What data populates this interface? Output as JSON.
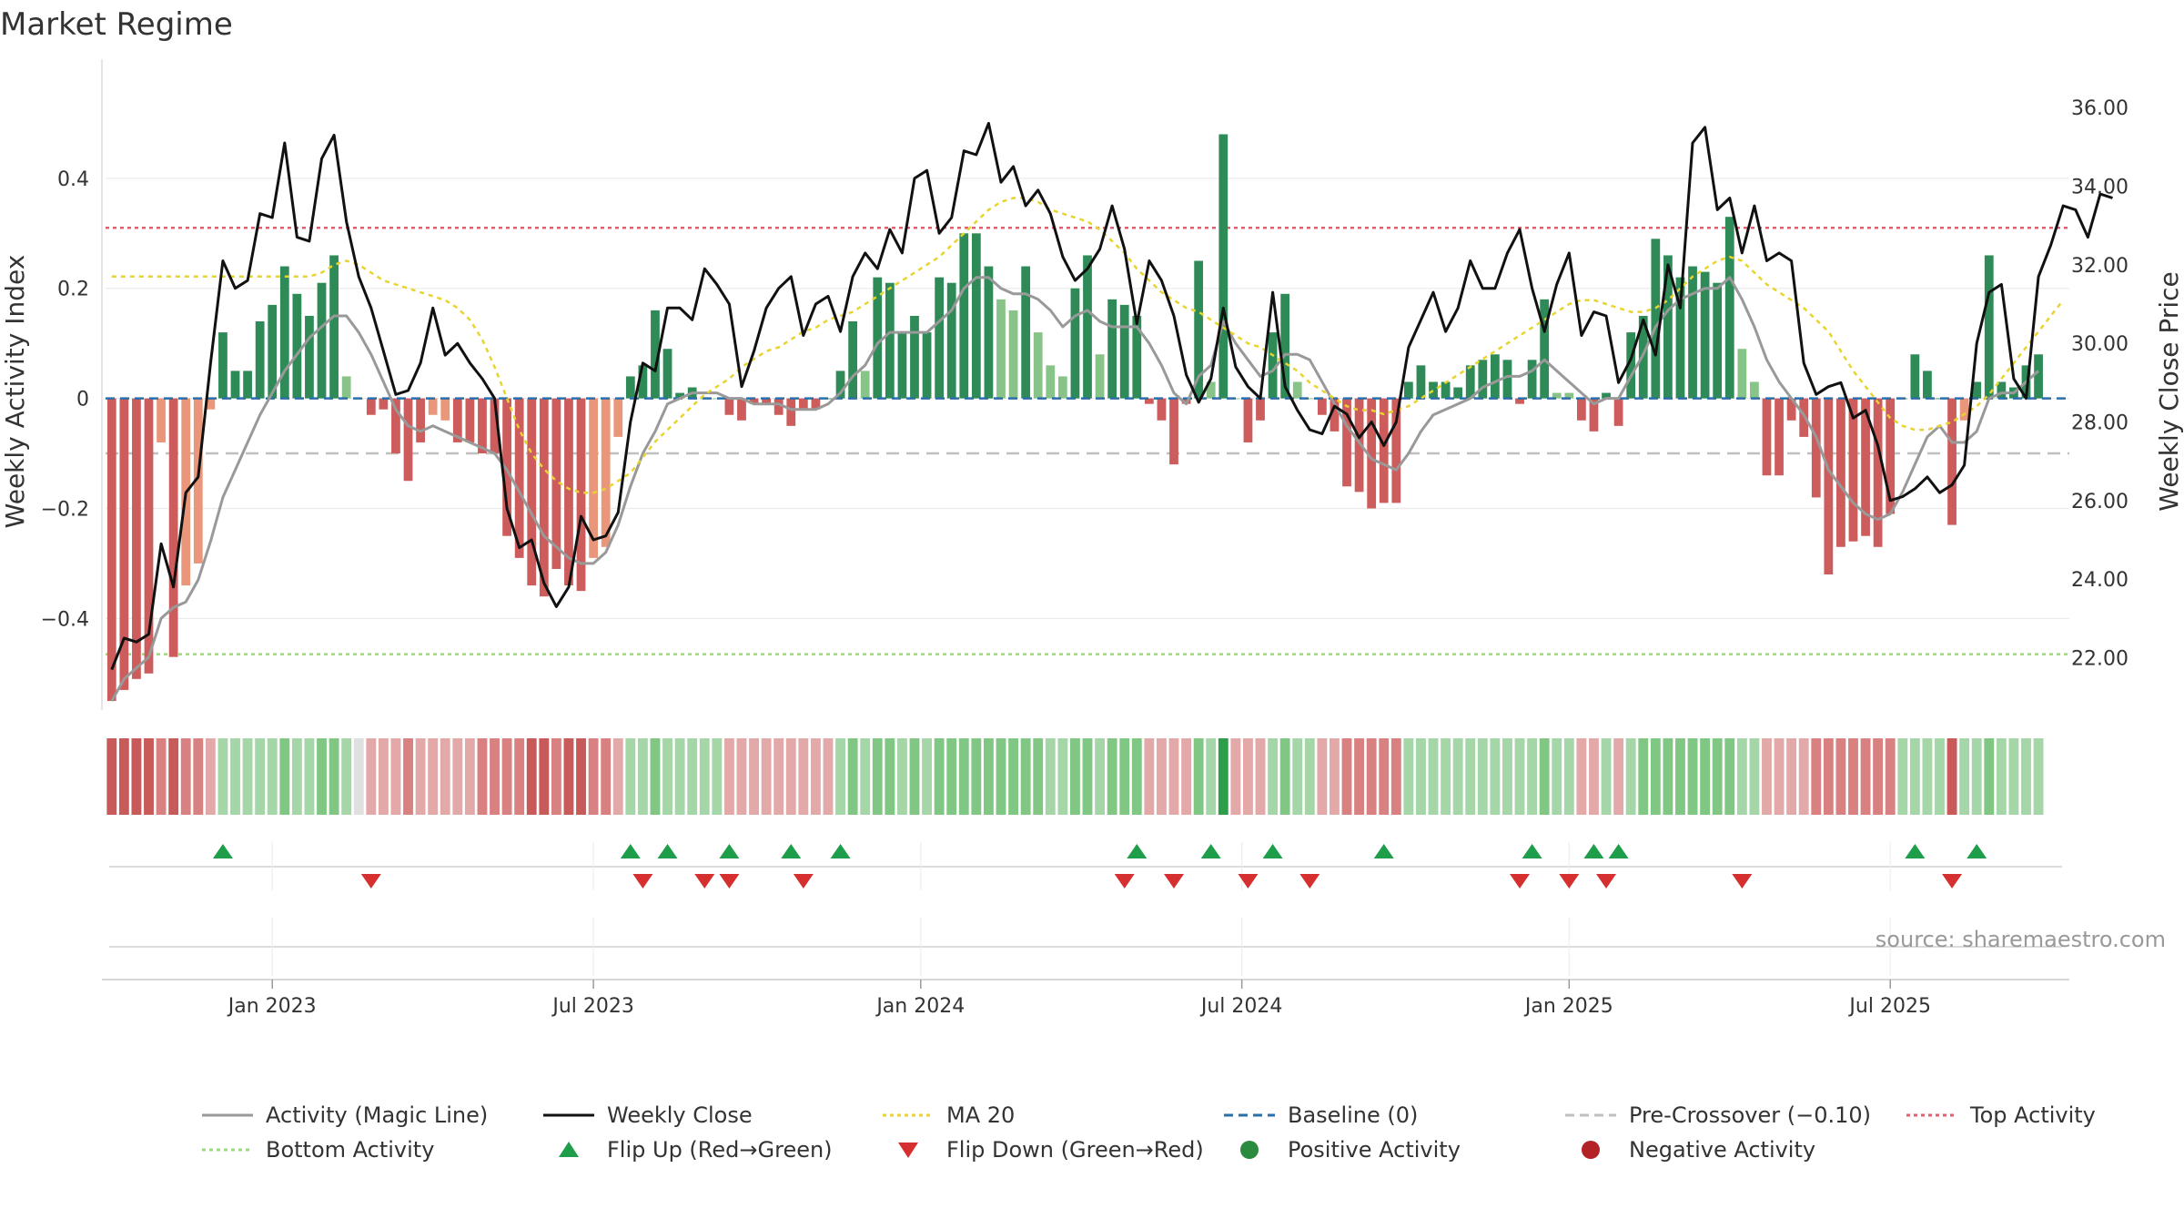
{
  "chart_data": {
    "type": "bar",
    "title": "Market Regime",
    "ylabel": "Weekly Activity Index",
    "ylabel_right": "Weekly Close Price",
    "source": "source: sharemaestro.com",
    "ylim": [
      -0.55,
      0.6
    ],
    "ylim_right": [
      20.9,
      37.0
    ],
    "yticks": [
      -0.4,
      -0.2,
      0,
      0.2,
      0.4
    ],
    "ytick_labels": [
      "−0.4",
      "−0.2",
      "0",
      "0.2",
      "0.4"
    ],
    "yticks_right": [
      22,
      24,
      26,
      28,
      30,
      32,
      34,
      36
    ],
    "ytick_labels_right": [
      "22.00",
      "24.00",
      "26.00",
      "28.00",
      "30.00",
      "32.00",
      "34.00",
      "36.00"
    ],
    "x_start": "2022-10-03",
    "weeks": 159,
    "xticks": [
      {
        "label": "Jan 2023",
        "week": 13
      },
      {
        "label": "Jul 2023",
        "week": 39
      },
      {
        "label": "Jan 2024",
        "week": 65.5
      },
      {
        "label": "Jul 2024",
        "week": 91.5
      },
      {
        "label": "Jan 2025",
        "week": 118
      },
      {
        "label": "Jul 2025",
        "week": 144
      }
    ],
    "reference_lines": {
      "baseline": 0,
      "pre_crossover": -0.1,
      "top_activity": 0.31,
      "bottom_activity": -0.465
    },
    "activity_index": [
      -0.55,
      -0.53,
      -0.51,
      -0.5,
      -0.08,
      -0.47,
      -0.34,
      -0.3,
      -0.02,
      0.12,
      0.05,
      0.05,
      0.14,
      0.17,
      0.24,
      0.19,
      0.15,
      0.21,
      0.26,
      0.04,
      0.0,
      -0.03,
      -0.02,
      -0.1,
      -0.15,
      -0.08,
      -0.03,
      -0.04,
      -0.08,
      -0.08,
      -0.1,
      -0.1,
      -0.25,
      -0.29,
      -0.34,
      -0.36,
      -0.31,
      -0.34,
      -0.35,
      -0.29,
      -0.27,
      -0.07,
      0.04,
      0.06,
      0.16,
      0.09,
      0.01,
      0.02,
      0.0,
      0.0,
      -0.03,
      -0.04,
      -0.01,
      -0.01,
      -0.03,
      -0.05,
      -0.02,
      -0.02,
      0.0,
      0.05,
      0.14,
      0.05,
      0.22,
      0.21,
      0.12,
      0.15,
      0.12,
      0.22,
      0.21,
      0.3,
      0.3,
      0.24,
      0.18,
      0.16,
      0.24,
      0.12,
      0.06,
      0.04,
      0.2,
      0.26,
      0.08,
      0.18,
      0.17,
      0.15,
      -0.01,
      -0.04,
      -0.12,
      -0.01,
      0.25,
      0.03,
      0.48,
      0.0,
      -0.08,
      -0.04,
      0.12,
      0.19,
      0.03,
      0.0,
      -0.03,
      -0.06,
      -0.16,
      -0.17,
      -0.2,
      -0.19,
      -0.19,
      0.03,
      0.06,
      0.03,
      0.03,
      0.02,
      0.06,
      0.07,
      0.08,
      0.07,
      -0.01,
      0.07,
      0.18,
      0.01,
      0.01,
      -0.04,
      -0.06,
      0.01,
      -0.05,
      0.12,
      0.15,
      0.29,
      0.26,
      0.22,
      0.24,
      0.23,
      0.21,
      0.33,
      0.09,
      0.03,
      -0.14,
      -0.14,
      -0.04,
      -0.07,
      -0.18,
      -0.32,
      -0.27,
      -0.26,
      -0.25,
      -0.27,
      -0.21,
      0.0,
      0.08,
      0.05,
      0.0,
      -0.23,
      -0.04,
      0.03,
      0.26,
      0.03,
      0.02,
      0.06,
      0.08
    ],
    "magic_line": [
      -0.55,
      -0.51,
      -0.49,
      -0.47,
      -0.4,
      -0.38,
      -0.37,
      -0.33,
      -0.26,
      -0.18,
      -0.13,
      -0.08,
      -0.03,
      0.01,
      0.05,
      0.08,
      0.11,
      0.13,
      0.15,
      0.15,
      0.12,
      0.08,
      0.03,
      -0.02,
      -0.05,
      -0.06,
      -0.05,
      -0.06,
      -0.07,
      -0.08,
      -0.09,
      -0.1,
      -0.13,
      -0.17,
      -0.21,
      -0.25,
      -0.27,
      -0.29,
      -0.3,
      -0.3,
      -0.28,
      -0.23,
      -0.16,
      -0.1,
      -0.06,
      -0.01,
      0.0,
      0.01,
      0.01,
      0.01,
      0.0,
      0.0,
      -0.01,
      -0.01,
      -0.01,
      -0.02,
      -0.02,
      -0.02,
      -0.01,
      0.01,
      0.04,
      0.06,
      0.1,
      0.12,
      0.12,
      0.12,
      0.12,
      0.14,
      0.16,
      0.2,
      0.22,
      0.22,
      0.2,
      0.19,
      0.19,
      0.18,
      0.16,
      0.13,
      0.15,
      0.16,
      0.14,
      0.13,
      0.13,
      0.13,
      0.1,
      0.06,
      0.01,
      -0.01,
      0.04,
      0.06,
      0.14,
      0.1,
      0.07,
      0.04,
      0.05,
      0.08,
      0.08,
      0.07,
      0.03,
      -0.01,
      -0.05,
      -0.08,
      -0.11,
      -0.12,
      -0.13,
      -0.1,
      -0.06,
      -0.03,
      -0.02,
      -0.01,
      0.0,
      0.02,
      0.03,
      0.04,
      0.04,
      0.05,
      0.07,
      0.05,
      0.03,
      0.01,
      -0.01,
      0.0,
      0.0,
      0.04,
      0.08,
      0.13,
      0.16,
      0.18,
      0.19,
      0.2,
      0.2,
      0.22,
      0.18,
      0.13,
      0.07,
      0.03,
      0.0,
      -0.03,
      -0.07,
      -0.13,
      -0.16,
      -0.19,
      -0.21,
      -0.22,
      -0.21,
      -0.17,
      -0.12,
      -0.07,
      -0.05,
      -0.08,
      -0.08,
      -0.06,
      0.0,
      0.01,
      0.01,
      0.03,
      0.05
    ],
    "weekly_close": [
      21.7,
      22.5,
      22.4,
      22.6,
      24.9,
      23.8,
      26.2,
      26.6,
      29.5,
      32.1,
      31.4,
      31.6,
      33.3,
      33.2,
      35.1,
      32.7,
      32.6,
      34.7,
      35.3,
      33.1,
      31.7,
      30.9,
      29.8,
      28.7,
      28.8,
      29.5,
      30.9,
      29.7,
      30.0,
      29.5,
      29.1,
      28.6,
      25.8,
      24.8,
      25.0,
      23.9,
      23.3,
      23.8,
      25.6,
      25.0,
      25.1,
      25.7,
      28.0,
      29.5,
      29.3,
      30.9,
      30.9,
      30.6,
      31.9,
      31.5,
      31.0,
      28.9,
      29.8,
      30.9,
      31.4,
      31.7,
      30.2,
      31.0,
      31.2,
      30.3,
      31.7,
      32.3,
      31.9,
      32.9,
      32.3,
      34.2,
      34.4,
      32.8,
      33.2,
      34.9,
      34.8,
      35.6,
      34.1,
      34.5,
      33.5,
      33.9,
      33.3,
      32.2,
      31.6,
      31.9,
      32.4,
      33.5,
      32.4,
      30.5,
      32.1,
      31.6,
      30.7,
      29.2,
      28.5,
      29.1,
      30.9,
      29.4,
      28.9,
      28.6,
      31.3,
      28.9,
      28.3,
      27.8,
      27.7,
      28.4,
      28.2,
      27.6,
      28.0,
      27.4,
      28.0,
      29.9,
      30.6,
      31.3,
      30.3,
      30.9,
      32.1,
      31.4,
      31.4,
      32.3,
      32.9,
      31.4,
      30.3,
      31.5,
      32.3,
      30.2,
      30.8,
      30.7,
      29.0,
      29.6,
      30.6,
      29.7,
      32.0,
      30.9,
      35.1,
      35.5,
      33.4,
      33.7,
      32.3,
      33.5,
      32.1,
      32.3,
      32.1,
      29.5,
      28.7,
      28.9,
      29.0,
      28.1,
      28.3,
      27.4,
      26.0,
      26.1,
      26.3,
      26.6,
      26.2,
      26.4,
      26.9,
      30.0,
      31.3,
      31.5,
      29.1,
      28.6,
      31.7,
      32.5,
      33.5,
      33.4,
      32.7,
      33.8,
      33.7
    ],
    "ma20": [
      31.7,
      31.7,
      31.7,
      31.7,
      31.7,
      31.7,
      31.7,
      31.7,
      31.7,
      31.7,
      31.7,
      31.7,
      31.7,
      31.7,
      31.7,
      31.7,
      31.7,
      31.8,
      32.0,
      32.1,
      32.0,
      31.8,
      31.6,
      31.5,
      31.4,
      31.3,
      31.2,
      31.1,
      30.9,
      30.6,
      30.1,
      29.4,
      28.6,
      27.8,
      27.2,
      26.8,
      26.5,
      26.3,
      26.2,
      26.2,
      26.3,
      26.5,
      26.7,
      27.1,
      27.5,
      27.8,
      28.1,
      28.4,
      28.7,
      28.9,
      29.1,
      29.4,
      29.6,
      29.8,
      29.9,
      30.1,
      30.3,
      30.4,
      30.6,
      30.7,
      30.8,
      31.0,
      31.2,
      31.4,
      31.6,
      31.8,
      32.0,
      32.2,
      32.5,
      32.8,
      33.1,
      33.4,
      33.6,
      33.7,
      33.7,
      33.6,
      33.4,
      33.3,
      33.2,
      33.1,
      32.9,
      32.6,
      32.3,
      31.9,
      31.6,
      31.3,
      31.1,
      30.9,
      30.8,
      30.6,
      30.4,
      30.2,
      30.0,
      29.9,
      29.7,
      29.5,
      29.3,
      29.0,
      28.8,
      28.6,
      28.4,
      28.3,
      28.3,
      28.2,
      28.3,
      28.4,
      28.6,
      28.8,
      29.0,
      29.2,
      29.4,
      29.6,
      29.8,
      30.0,
      30.2,
      30.4,
      30.6,
      30.8,
      31.0,
      31.1,
      31.1,
      31.0,
      30.9,
      30.8,
      30.8,
      30.9,
      31.1,
      31.4,
      31.7,
      31.9,
      32.1,
      32.2,
      32.1,
      31.8,
      31.5,
      31.3,
      31.1,
      30.9,
      30.6,
      30.3,
      29.8,
      29.3,
      28.9,
      28.5,
      28.1,
      27.9,
      27.8,
      27.8,
      27.9,
      28.0,
      28.2,
      28.4,
      28.7,
      29.1,
      29.5,
      29.9,
      30.3,
      30.7,
      31.1
    ],
    "regime_strip": {
      "note": "per-week intensity -3..3 (negative = red regime, positive = green regime)",
      "values": [
        -3,
        -3,
        -3,
        -3,
        -2,
        -3,
        -2,
        -2,
        -1,
        1,
        1,
        1,
        1,
        1,
        2,
        1,
        1,
        2,
        2,
        1,
        0,
        -1,
        -1,
        -1,
        -2,
        -1,
        -1,
        -1,
        -1,
        -1,
        -2,
        -2,
        -2,
        -2,
        -3,
        -3,
        -2,
        -3,
        -3,
        -2,
        -2,
        -1,
        1,
        1,
        2,
        1,
        1,
        1,
        1,
        1,
        -1,
        -1,
        -1,
        -1,
        -1,
        -1,
        -1,
        -1,
        -1,
        1,
        2,
        1,
        2,
        2,
        1,
        2,
        1,
        2,
        2,
        2,
        2,
        2,
        2,
        2,
        2,
        2,
        1,
        1,
        2,
        2,
        1,
        2,
        2,
        2,
        -1,
        -1,
        -1,
        -1,
        2,
        1,
        3,
        -1,
        -1,
        -1,
        1,
        2,
        1,
        1,
        -1,
        -1,
        -2,
        -2,
        -2,
        -2,
        -2,
        1,
        1,
        1,
        1,
        1,
        1,
        1,
        1,
        1,
        1,
        1,
        2,
        1,
        1,
        -1,
        -1,
        1,
        -1,
        1,
        2,
        2,
        2,
        2,
        2,
        2,
        2,
        2,
        1,
        1,
        -1,
        -1,
        -1,
        -1,
        -2,
        -2,
        -2,
        -2,
        -2,
        -2,
        -2,
        1,
        1,
        1,
        1,
        -3,
        1,
        1,
        2,
        1,
        1,
        1,
        1
      ]
    },
    "flip_up_weeks": [
      9,
      42,
      45,
      50,
      55,
      59,
      83,
      89,
      94,
      103,
      115,
      120,
      122,
      146,
      151
    ],
    "flip_down_weeks": [
      21,
      43,
      48,
      50,
      56,
      82,
      86,
      92,
      97,
      114,
      118,
      121,
      132,
      149
    ],
    "legend": [
      {
        "label": "Activity (Magic Line)",
        "kind": "line",
        "color": "#999999",
        "dash": ""
      },
      {
        "label": "Weekly Close",
        "kind": "line",
        "color": "#111111",
        "dash": ""
      },
      {
        "label": "MA 20",
        "kind": "line",
        "color": "#e8d42e",
        "dash": "4,4"
      },
      {
        "label": "Baseline (0)",
        "kind": "line",
        "color": "#2b6ea8",
        "dash": "10,6"
      },
      {
        "label": "Pre-Crossover (−0.10)",
        "kind": "line",
        "color": "#c0c0c0",
        "dash": "10,6"
      },
      {
        "label": "Top Activity",
        "kind": "line",
        "color": "#e06070",
        "dash": "4,4"
      },
      {
        "label": "Bottom Activity",
        "kind": "line",
        "color": "#9fd87c",
        "dash": "4,4"
      },
      {
        "label": "Flip Up (Red→Green)",
        "kind": "tri-up",
        "color": "#1e9e4a",
        "dash": ""
      },
      {
        "label": "Flip Down (Green→Red)",
        "kind": "tri-down",
        "color": "#d62f2f",
        "dash": ""
      },
      {
        "label": "Positive Activity",
        "kind": "dot",
        "color": "#2a8a3e",
        "dash": ""
      },
      {
        "label": "Negative Activity",
        "kind": "dot",
        "color": "#b22226",
        "dash": ""
      }
    ],
    "colors": {
      "pos_strong": "#2e8b57",
      "pos_light": "#88c487",
      "neg_strong": "#cd5c5c",
      "neg_light": "#e9967a",
      "magic_line": "#999999",
      "close": "#111111",
      "ma20": "#e8d42e",
      "baseline": "#2b6ea8",
      "pre_crossover": "#c0c0c0",
      "top_activity": "#e06070",
      "bottom_activity": "#9fd87c",
      "flip_up": "#1e9e4a",
      "flip_down": "#d62f2f",
      "grid": "#ececec"
    }
  }
}
